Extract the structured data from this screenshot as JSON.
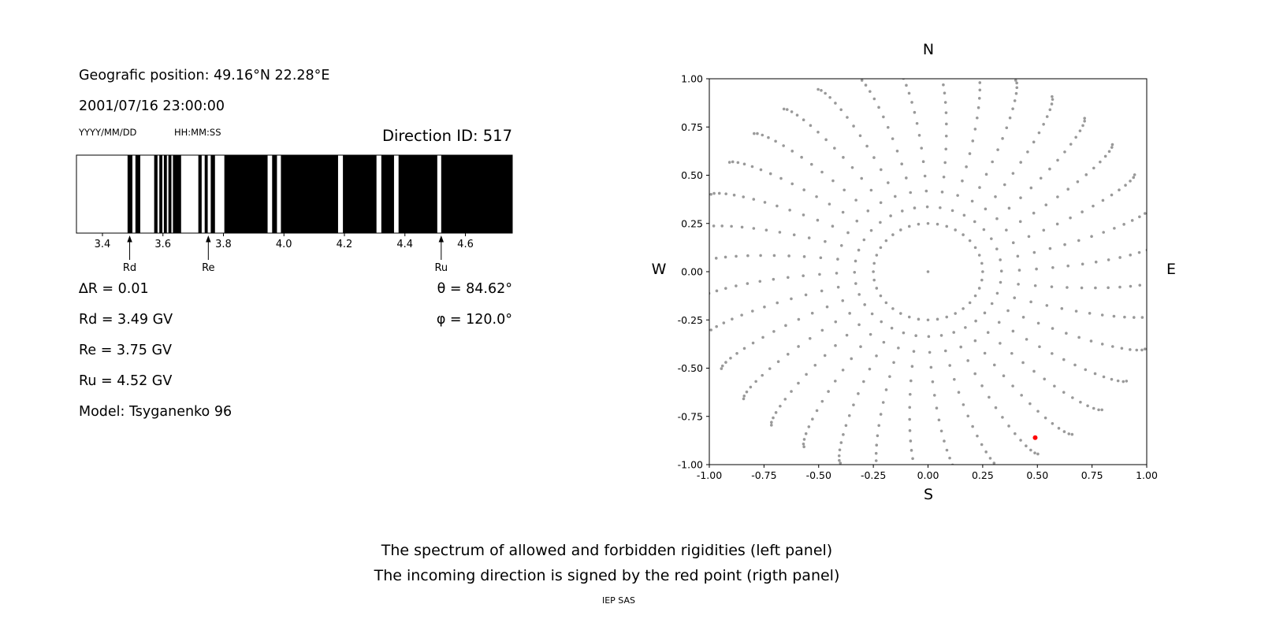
{
  "left_panel": {
    "position_label": "Geografic position: 49.16°N 22.28°E",
    "datetime": "2001/07/16 23:00:00",
    "date_format_label": "YYYY/MM/DD",
    "time_format_label": "HH:MM:SS",
    "direction_id_label": "Direction ID: 517",
    "info": {
      "delta_r": "∆R = 0.01",
      "theta": "θ = 84.62°",
      "rd": "Rd = 3.49 GV",
      "phi": "φ = 120.0°",
      "re": "Re = 3.75 GV",
      "ru": "Ru = 4.52 GV",
      "model": "Model: Tsyganenko 96"
    }
  },
  "compass": {
    "north": "N",
    "south": "S",
    "east": "E",
    "west": "W"
  },
  "captions": {
    "line1": "The spectrum of allowed and forbidden rigidities (left panel)",
    "line2": "The incoming direction is signed by the red point (rigth panel)",
    "credit": "IEP SAS"
  },
  "chart_data": [
    {
      "type": "bar",
      "subtype": "rigidity-barcode-spectrum",
      "title": "Direction ID: 517",
      "xlabel": "",
      "xlim": [
        3.314,
        4.755
      ],
      "xticks": [
        3.4,
        3.6,
        3.8,
        4.0,
        4.2,
        4.4,
        4.6
      ],
      "bar_color": "#000000",
      "allowed_color": "#ffffff",
      "delta_r_gv": 0.01,
      "forbidden_intervals_gv": [
        [
          3.483,
          3.499
        ],
        [
          3.509,
          3.525
        ],
        [
          3.571,
          3.582
        ],
        [
          3.588,
          3.598
        ],
        [
          3.603,
          3.613
        ],
        [
          3.618,
          3.628
        ],
        [
          3.633,
          3.66
        ],
        [
          3.717,
          3.728
        ],
        [
          3.738,
          3.748
        ],
        [
          3.758,
          3.772
        ],
        [
          3.803,
          3.946
        ],
        [
          3.961,
          3.977
        ],
        [
          3.99,
          4.179
        ],
        [
          4.195,
          4.306
        ],
        [
          4.322,
          4.364
        ],
        [
          4.379,
          4.507
        ],
        [
          4.52,
          4.755
        ]
      ],
      "markers": [
        {
          "label": "Rd",
          "value": 3.49
        },
        {
          "label": "Re",
          "value": 3.75
        },
        {
          "label": "Ru",
          "value": 4.52
        }
      ]
    },
    {
      "type": "scatter",
      "subtype": "incoming-direction-map",
      "xlim": [
        -1.0,
        1.0
      ],
      "ylim": [
        -1.0,
        1.0
      ],
      "xticks": [
        -1.0,
        -0.75,
        -0.5,
        -0.25,
        0.0,
        0.25,
        0.5,
        0.75,
        1.0
      ],
      "yticks": [
        -1.0,
        -0.75,
        -0.5,
        -0.25,
        0.0,
        0.25,
        0.5,
        0.75,
        1.0
      ],
      "compass_labels": {
        "top": "N",
        "bottom": "S",
        "left": "W",
        "right": "E"
      },
      "grid_dots": {
        "azimuth_start_deg": 0,
        "azimuth_step_deg": 10,
        "spoke_count": 36,
        "radii": [
          0.25,
          0.336,
          0.418,
          0.496,
          0.571,
          0.641,
          0.708,
          0.77,
          0.828,
          0.881,
          0.929,
          0.971,
          1.008,
          1.037,
          1.059,
          1.07
        ],
        "drift_deg": 8,
        "color": "#999999"
      },
      "center_dot": {
        "x": 0.0,
        "y": 0.0
      },
      "red_point": {
        "x": 0.49,
        "y": -0.86,
        "color": "#ff0000"
      }
    }
  ]
}
